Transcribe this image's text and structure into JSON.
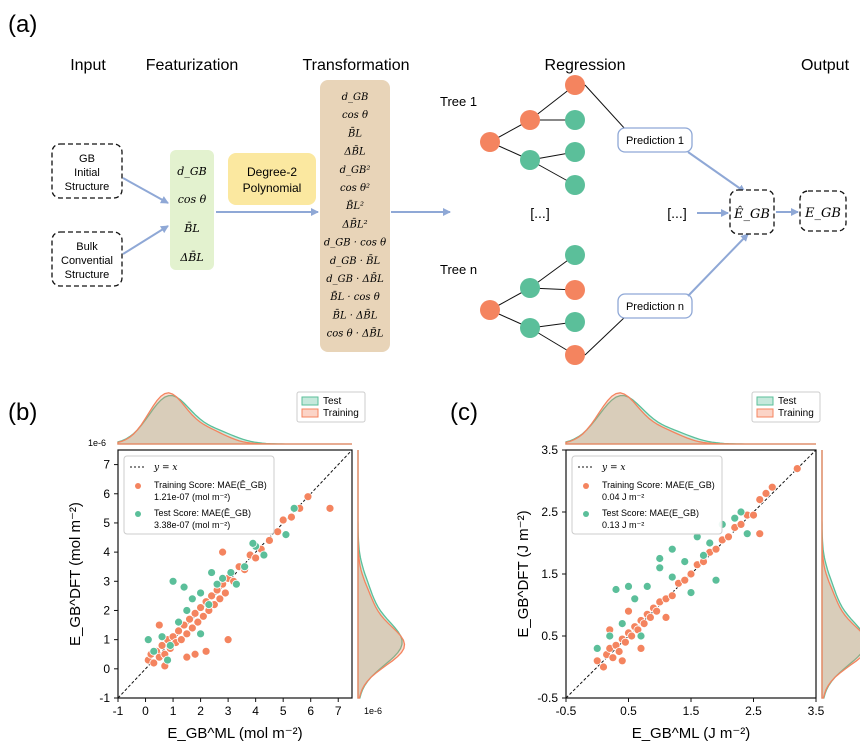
{
  "panel_a": {
    "label": "(a)",
    "headers": {
      "input": "Input",
      "featurization": "Featurization",
      "transformation": "Transformation",
      "regression": "Regression",
      "output": "Output"
    },
    "inputs": [
      {
        "lines": [
          "GB",
          "Initial",
          "Structure"
        ]
      },
      {
        "lines": [
          "Bulk",
          "Convential",
          "Structure"
        ]
      }
    ],
    "features": [
      "d_GB",
      "cos θ",
      "B̄L",
      "ΔB̄L"
    ],
    "poly_box": [
      "Degree-2",
      "Polynomial"
    ],
    "transformed": [
      "d_GB",
      "cos θ",
      "B̄L",
      "ΔB̄L",
      "d_GB²",
      "cos θ²",
      "B̄L²",
      "ΔB̄L²",
      "d_GB · cos θ",
      "d_GB · B̄L",
      "d_GB · ΔB̄L",
      "B̄L · cos θ",
      "B̄L · ΔB̄L",
      "cos θ · ΔB̄L"
    ],
    "tree1_label": "Tree 1",
    "treen_label": "Tree n",
    "ellipsis": "[...]",
    "prediction1": "Prediction 1",
    "predictionn": "Prediction n",
    "ehat": "Ê_GB",
    "e": "E_GB",
    "colors": {
      "orange": "#f4845f",
      "green": "#5bbf9a",
      "feat_box": "#e3f2cf",
      "poly_box": "#fbe8a0",
      "trans_box": "#e8d4b8",
      "arrow": "#8fa8d6"
    }
  },
  "chart_data": [
    {
      "panel": "(b)",
      "type": "scatter",
      "xlabel": "E_GB^ML (mol m⁻²)",
      "ylabel": "E_GB^DFT (mol m⁻²)",
      "xlim": [
        -1,
        7.5
      ],
      "ylim": [
        -1,
        7.5
      ],
      "xticks": [
        -1,
        0,
        1,
        2,
        3,
        4,
        5,
        6,
        7
      ],
      "yticks": [
        -1,
        0,
        1,
        2,
        3,
        4,
        5,
        6,
        7
      ],
      "x_offset_label": "1e-6",
      "y_offset_label": "1e-6",
      "legend_main": [
        "y = x",
        "Training Score: MAE(Ê_GB)",
        "1.21e-07  (mol m⁻²)",
        "Test Score: MAE(Ê_GB)",
        "3.38e-07  (mol m⁻²)"
      ],
      "legend_top": [
        "Test",
        "Training"
      ],
      "series": [
        {
          "name": "Training",
          "color": "#f4845f",
          "points": [
            [
              0.1,
              0.3
            ],
            [
              0.2,
              0.5
            ],
            [
              0.3,
              0.2
            ],
            [
              0.4,
              0.6
            ],
            [
              0.5,
              0.4
            ],
            [
              0.6,
              0.8
            ],
            [
              0.7,
              0.5
            ],
            [
              0.8,
              1.0
            ],
            [
              0.9,
              0.7
            ],
            [
              1.0,
              1.1
            ],
            [
              1.1,
              0.9
            ],
            [
              1.2,
              1.3
            ],
            [
              1.3,
              1.0
            ],
            [
              1.4,
              1.5
            ],
            [
              1.5,
              1.2
            ],
            [
              1.6,
              1.7
            ],
            [
              1.7,
              1.4
            ],
            [
              1.8,
              1.9
            ],
            [
              1.9,
              1.6
            ],
            [
              2.0,
              2.1
            ],
            [
              2.1,
              1.8
            ],
            [
              2.2,
              2.3
            ],
            [
              2.3,
              2.0
            ],
            [
              2.4,
              2.5
            ],
            [
              2.5,
              2.2
            ],
            [
              2.6,
              2.7
            ],
            [
              2.7,
              2.4
            ],
            [
              2.8,
              2.9
            ],
            [
              2.9,
              2.6
            ],
            [
              3.0,
              3.1
            ],
            [
              3.2,
              3.0
            ],
            [
              3.4,
              3.5
            ],
            [
              3.6,
              3.4
            ],
            [
              3.8,
              3.9
            ],
            [
              4.0,
              3.8
            ],
            [
              4.2,
              4.1
            ],
            [
              4.5,
              4.4
            ],
            [
              4.8,
              4.7
            ],
            [
              5.0,
              5.1
            ],
            [
              5.3,
              5.2
            ],
            [
              5.6,
              5.5
            ],
            [
              5.9,
              5.9
            ],
            [
              6.7,
              5.5
            ],
            [
              2.8,
              4.0
            ],
            [
              2.2,
              0.6
            ],
            [
              1.8,
              0.5
            ],
            [
              0.5,
              1.5
            ],
            [
              1.5,
              0.4
            ],
            [
              3.0,
              1.0
            ],
            [
              0.7,
              0.1
            ]
          ]
        },
        {
          "name": "Test",
          "color": "#5bbf9a",
          "points": [
            [
              0.1,
              1.0
            ],
            [
              0.3,
              0.6
            ],
            [
              0.6,
              1.1
            ],
            [
              0.9,
              0.8
            ],
            [
              1.2,
              1.6
            ],
            [
              1.5,
              2.0
            ],
            [
              1.7,
              2.4
            ],
            [
              2.0,
              2.6
            ],
            [
              2.3,
              2.2
            ],
            [
              2.6,
              2.9
            ],
            [
              2.8,
              3.1
            ],
            [
              3.1,
              3.3
            ],
            [
              3.3,
              2.9
            ],
            [
              3.6,
              3.5
            ],
            [
              4.0,
              4.2
            ],
            [
              4.3,
              3.9
            ],
            [
              5.1,
              4.6
            ],
            [
              5.4,
              5.5
            ],
            [
              1.0,
              3.0
            ],
            [
              2.0,
              1.2
            ],
            [
              0.8,
              0.3
            ],
            [
              1.4,
              2.8
            ],
            [
              2.4,
              3.3
            ],
            [
              3.9,
              4.3
            ]
          ]
        }
      ]
    },
    {
      "panel": "(c)",
      "type": "scatter",
      "xlabel": "E_GB^ML (J m⁻²)",
      "ylabel": "E_GB^DFT (J m⁻²)",
      "xlim": [
        -0.5,
        3.5
      ],
      "ylim": [
        -0.5,
        3.5
      ],
      "xticks": [
        -0.5,
        0.5,
        1.5,
        2.5,
        3.5
      ],
      "yticks": [
        -0.5,
        0.5,
        1.5,
        2.5,
        3.5
      ],
      "legend_main": [
        "y = x",
        "Training Score: MAE(E_GB)",
        "0.04 J m⁻²",
        "Test Score: MAE(E_GB)",
        "0.13 J m⁻²"
      ],
      "legend_top": [
        "Test",
        "Training"
      ],
      "series": [
        {
          "name": "Training",
          "color": "#f4845f",
          "points": [
            [
              0.0,
              0.1
            ],
            [
              0.1,
              0.0
            ],
            [
              0.15,
              0.2
            ],
            [
              0.2,
              0.3
            ],
            [
              0.25,
              0.15
            ],
            [
              0.3,
              0.35
            ],
            [
              0.35,
              0.25
            ],
            [
              0.4,
              0.45
            ],
            [
              0.45,
              0.4
            ],
            [
              0.5,
              0.55
            ],
            [
              0.55,
              0.5
            ],
            [
              0.6,
              0.65
            ],
            [
              0.65,
              0.6
            ],
            [
              0.7,
              0.75
            ],
            [
              0.75,
              0.7
            ],
            [
              0.8,
              0.85
            ],
            [
              0.85,
              0.8
            ],
            [
              0.9,
              0.95
            ],
            [
              0.95,
              0.9
            ],
            [
              1.0,
              1.05
            ],
            [
              1.1,
              1.1
            ],
            [
              1.2,
              1.15
            ],
            [
              1.3,
              1.35
            ],
            [
              1.4,
              1.4
            ],
            [
              1.5,
              1.5
            ],
            [
              1.6,
              1.65
            ],
            [
              1.7,
              1.7
            ],
            [
              1.8,
              1.85
            ],
            [
              1.9,
              1.9
            ],
            [
              2.0,
              2.05
            ],
            [
              2.1,
              2.1
            ],
            [
              2.2,
              2.25
            ],
            [
              2.3,
              2.3
            ],
            [
              2.4,
              2.45
            ],
            [
              2.5,
              2.45
            ],
            [
              2.6,
              2.7
            ],
            [
              2.7,
              2.8
            ],
            [
              2.8,
              2.9
            ],
            [
              3.2,
              3.2
            ],
            [
              2.6,
              2.15
            ],
            [
              0.2,
              0.6
            ],
            [
              0.4,
              0.1
            ],
            [
              0.7,
              0.3
            ],
            [
              0.5,
              0.9
            ],
            [
              1.1,
              0.8
            ]
          ]
        },
        {
          "name": "Test",
          "color": "#5bbf9a",
          "points": [
            [
              0.0,
              0.3
            ],
            [
              0.2,
              0.5
            ],
            [
              0.4,
              0.7
            ],
            [
              0.6,
              1.1
            ],
            [
              0.8,
              1.3
            ],
            [
              1.0,
              1.6
            ],
            [
              1.2,
              1.9
            ],
            [
              1.4,
              1.7
            ],
            [
              1.6,
              2.1
            ],
            [
              1.8,
              2.0
            ],
            [
              2.0,
              2.3
            ],
            [
              2.2,
              2.4
            ],
            [
              2.3,
              2.5
            ],
            [
              1.9,
              1.4
            ],
            [
              1.5,
              1.2
            ],
            [
              1.2,
              1.45
            ],
            [
              0.7,
              0.5
            ],
            [
              0.5,
              1.3
            ],
            [
              0.3,
              1.25
            ],
            [
              1.0,
              1.75
            ],
            [
              2.4,
              2.15
            ],
            [
              1.7,
              1.8
            ]
          ]
        }
      ]
    }
  ]
}
